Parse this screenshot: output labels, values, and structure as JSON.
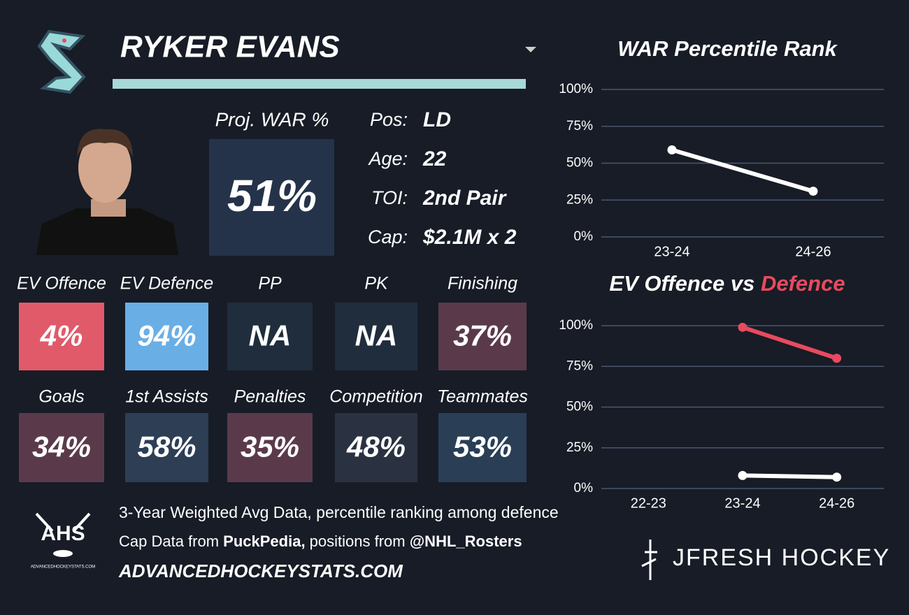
{
  "player": {
    "name": "RYKER EVANS",
    "proj_label": "Proj. WAR %",
    "proj_value": "51%",
    "info": [
      {
        "label": "Pos:",
        "value": "LD"
      },
      {
        "label": "Age:",
        "value": "22"
      },
      {
        "label": "TOI:",
        "value": "2nd Pair"
      },
      {
        "label": "Cap:",
        "value": "$2.1M x 2"
      }
    ]
  },
  "tiles": [
    {
      "label": "EV Offence",
      "value": "4%",
      "color": "#e05a6a"
    },
    {
      "label": "EV Defence",
      "value": "94%",
      "color": "#6aaee6"
    },
    {
      "label": "PP",
      "value": "NA",
      "color": "#1f2d3d"
    },
    {
      "label": "PK",
      "value": "NA",
      "color": "#1f2d3d"
    },
    {
      "label": "Finishing",
      "value": "37%",
      "color": "#5a3a4a"
    },
    {
      "label": "Goals",
      "value": "34%",
      "color": "#5a3a4a"
    },
    {
      "label": "1st Assists",
      "value": "58%",
      "color": "#2d3e55"
    },
    {
      "label": "Penalties",
      "value": "35%",
      "color": "#5a3a4a"
    },
    {
      "label": "Competition",
      "value": "48%",
      "color": "#2a3140"
    },
    {
      "label": "Teammates",
      "value": "53%",
      "color": "#2a3e55"
    }
  ],
  "footer": {
    "line1": "3-Year Weighted Avg Data, percentile ranking among defence",
    "line2": [
      "Cap Data from ",
      "PuckPedia,",
      " positions from ",
      "@NHL_Rosters"
    ],
    "line3": "ADVANCEDHOCKEYSTATS.COM",
    "brand": "JFRESH HOCKEY",
    "logo_text": "AHS",
    "logo_small": "ADVANCEDHOCKEYSTATS.COM"
  },
  "chart_data": [
    {
      "type": "line",
      "title": "WAR Percentile Rank",
      "x": [
        "23-24",
        "24-26"
      ],
      "series": [
        {
          "color": "#ffffff",
          "values": [
            59,
            31
          ]
        }
      ],
      "ylim": [
        0,
        100
      ],
      "yticks": [
        {
          "value": 0,
          "label": "0%"
        },
        {
          "value": 25,
          "label": "25%"
        },
        {
          "value": 50,
          "label": "50%"
        },
        {
          "value": 75,
          "label": "75%"
        },
        {
          "value": 100,
          "label": "100%"
        }
      ],
      "grid": true
    },
    {
      "type": "line",
      "title": "EV Offence vs",
      "title_highlight": "Defence",
      "x": [
        "22-23",
        "23-24",
        "24-26"
      ],
      "series": [
        {
          "color": "#ffffff",
          "values": [
            null,
            8,
            7
          ]
        },
        {
          "color": "#e84a5f",
          "values": [
            null,
            99,
            80
          ]
        }
      ],
      "ylim": [
        0,
        100
      ],
      "yticks": [
        {
          "value": 0,
          "label": "0%"
        },
        {
          "value": 25,
          "label": "25%"
        },
        {
          "value": 50,
          "label": "50%"
        },
        {
          "value": 75,
          "label": "75%"
        },
        {
          "value": 100,
          "label": "100%"
        }
      ],
      "grid": true
    }
  ]
}
